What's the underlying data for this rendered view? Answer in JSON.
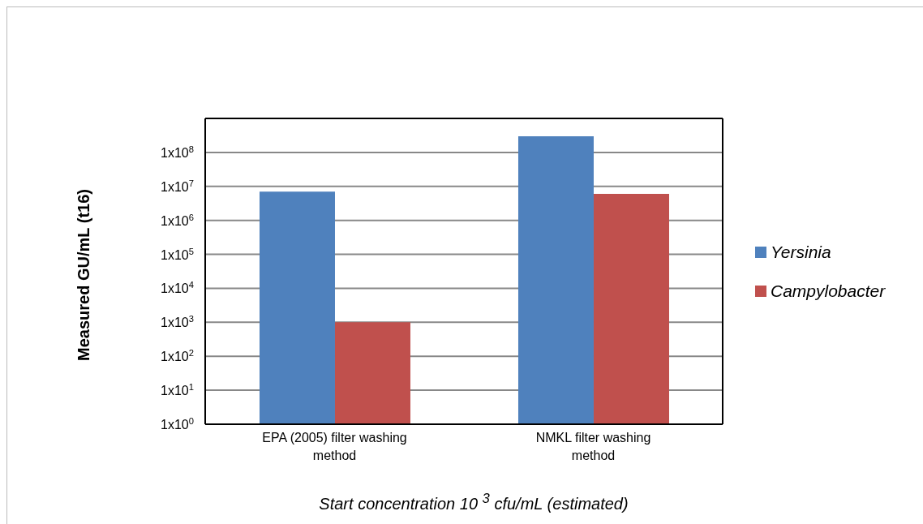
{
  "chart_data": {
    "type": "bar",
    "xlabel": "Start concentration 10 $^{3}$ cfu/mL (estimated)",
    "ylabel": "Measured GU/mL (t16)",
    "categories": [
      "EPA (2005) filter washing method",
      "NMKL filter washing method"
    ],
    "series": [
      {
        "name": "Yersinia",
        "color": "#4f81bd",
        "values": [
          7000000,
          300000000
        ]
      },
      {
        "name": "Campylobacter",
        "color": "#c0504d",
        "values": [
          1000,
          6000000
        ]
      }
    ],
    "log": true,
    "ylim": [
      1,
      1000000000
    ],
    "yticks": [
      {
        "value": 1,
        "label": "1x10$^{0}$"
      },
      {
        "value": 10,
        "label": "1x10$^{1}$"
      },
      {
        "value": 100,
        "label": "1x10$^{2}$"
      },
      {
        "value": 1000,
        "label": "1x10$^{3}$"
      },
      {
        "value": 10000,
        "label": "1x10$^{4}$"
      },
      {
        "value": 100000,
        "label": "1x10$^{5}$"
      },
      {
        "value": 1000000,
        "label": "1x10$^{6}$"
      },
      {
        "value": 10000000,
        "label": "1x10$^{7}$"
      },
      {
        "value": 100000000,
        "label": "1x10$^{8}$"
      },
      {
        "value": 1000000000,
        "label": null
      }
    ],
    "grid": "y",
    "legend": "right"
  }
}
